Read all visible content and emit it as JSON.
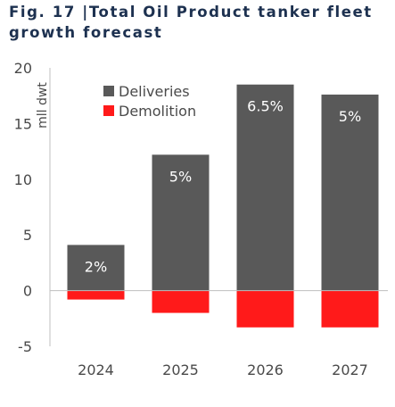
{
  "title": "Fig. 17 |Total Oil Product tanker fleet growth forecast",
  "chart_data": {
    "type": "bar",
    "stacked": true,
    "title": "Fig. 17 |Total Oil Product tanker fleet growth forecast",
    "ylabel": "mll dwt",
    "xlabel": "",
    "categories": [
      "2024",
      "2025",
      "2026",
      "2027"
    ],
    "ylim": [
      -5,
      20
    ],
    "yticks": [
      20,
      15,
      10,
      5,
      0,
      -5
    ],
    "grid": false,
    "legend_position": "top-left",
    "series": [
      {
        "name": "Deliveries",
        "color": "#595959",
        "values": [
          4.1,
          12.2,
          18.5,
          17.6
        ],
        "labels": [
          "2%",
          "5%",
          "6.5%",
          "5%"
        ]
      },
      {
        "name": "Demolition",
        "color": "#ff1a1a",
        "values": [
          -0.8,
          -2.0,
          -3.3,
          -3.3
        ]
      }
    ]
  }
}
